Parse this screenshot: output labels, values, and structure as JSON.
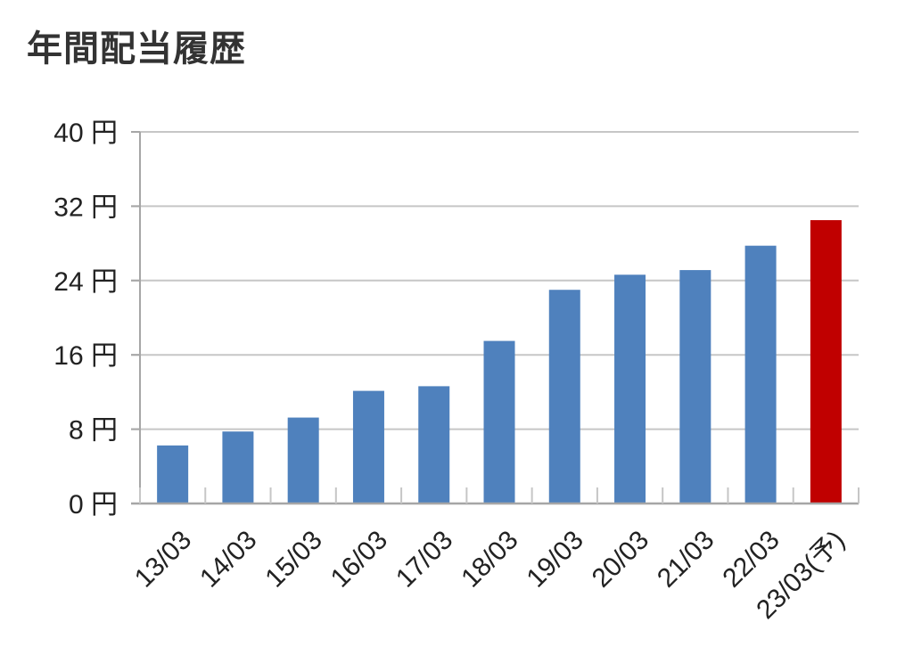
{
  "title": "年間配当履歴",
  "chart_data": {
    "type": "bar",
    "title": "年間配当履歴",
    "categories": [
      "13/03",
      "14/03",
      "15/03",
      "16/03",
      "17/03",
      "18/03",
      "19/03",
      "20/03",
      "21/03",
      "22/03",
      "23/03(予)"
    ],
    "values": [
      6.25,
      7.75,
      9.25,
      12.125,
      12.625,
      17.5,
      23.0,
      24.625,
      25.125,
      27.75,
      30.5
    ],
    "y_unit": "円",
    "yticks": [
      0,
      8,
      16,
      24,
      32,
      40
    ],
    "ylim": [
      0,
      40
    ],
    "xlabel": "",
    "ylabel": "",
    "grid": true,
    "colors": {
      "actual": "#4f81bd",
      "forecast": "#c00000",
      "grid": "#c6c6c6",
      "axis": "#a6a6a6"
    },
    "forecast_index": 10
  }
}
